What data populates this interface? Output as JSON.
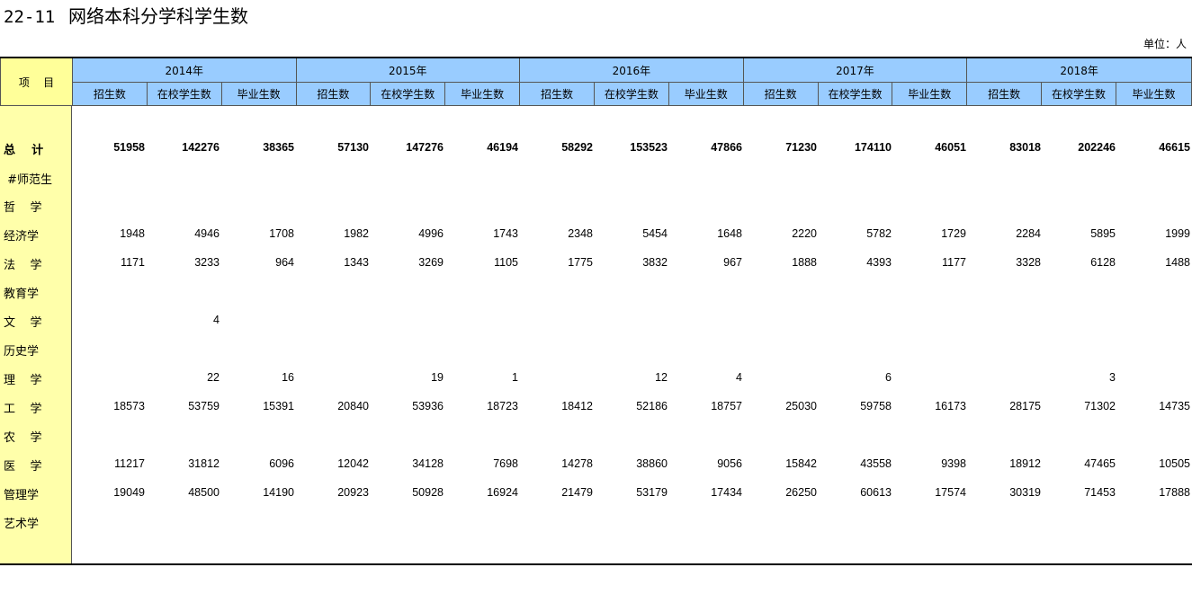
{
  "title": {
    "number": "22-11",
    "text": "网络本科分学科学生数"
  },
  "unit": "单位：人",
  "header": {
    "item": "项    目",
    "years": [
      "2014年",
      "2015年",
      "2016年",
      "2017年",
      "2018年"
    ],
    "subs": [
      "招生数",
      "在校学生数",
      "毕业生数"
    ]
  },
  "rows": [
    {
      "label": "总    计",
      "bold": true,
      "values": [
        "51958",
        "142276",
        "38365",
        "57130",
        "147276",
        "46194",
        "58292",
        "153523",
        "47866",
        "71230",
        "174110",
        "46051",
        "83018",
        "202246",
        "46615"
      ]
    },
    {
      "label": " #师范生",
      "bold": false,
      "values": [
        "",
        "",
        "",
        "",
        "",
        "",
        "",
        "",
        "",
        "",
        "",
        "",
        "",
        "",
        ""
      ]
    },
    {
      "label": "哲    学",
      "bold": false,
      "values": [
        "",
        "",
        "",
        "",
        "",
        "",
        "",
        "",
        "",
        "",
        "",
        "",
        "",
        "",
        ""
      ]
    },
    {
      "label": "经济学",
      "bold": false,
      "values": [
        "1948",
        "4946",
        "1708",
        "1982",
        "4996",
        "1743",
        "2348",
        "5454",
        "1648",
        "2220",
        "5782",
        "1729",
        "2284",
        "5895",
        "1999"
      ]
    },
    {
      "label": "法    学",
      "bold": false,
      "values": [
        "1171",
        "3233",
        "964",
        "1343",
        "3269",
        "1105",
        "1775",
        "3832",
        "967",
        "1888",
        "4393",
        "1177",
        "3328",
        "6128",
        "1488"
      ]
    },
    {
      "label": "教育学",
      "bold": false,
      "values": [
        "",
        "",
        "",
        "",
        "",
        "",
        "",
        "",
        "",
        "",
        "",
        "",
        "",
        "",
        ""
      ]
    },
    {
      "label": "文    学",
      "bold": false,
      "values": [
        "",
        "4",
        "",
        "",
        "",
        "",
        "",
        "",
        "",
        "",
        "",
        "",
        "",
        "",
        ""
      ]
    },
    {
      "label": "历史学",
      "bold": false,
      "values": [
        "",
        "",
        "",
        "",
        "",
        "",
        "",
        "",
        "",
        "",
        "",
        "",
        "",
        "",
        ""
      ]
    },
    {
      "label": "理    学",
      "bold": false,
      "values": [
        "",
        "22",
        "16",
        "",
        "19",
        "1",
        "",
        "12",
        "4",
        "",
        "6",
        "",
        "",
        "3",
        ""
      ]
    },
    {
      "label": "工    学",
      "bold": false,
      "values": [
        "18573",
        "53759",
        "15391",
        "20840",
        "53936",
        "18723",
        "18412",
        "52186",
        "18757",
        "25030",
        "59758",
        "16173",
        "28175",
        "71302",
        "14735"
      ]
    },
    {
      "label": "农    学",
      "bold": false,
      "values": [
        "",
        "",
        "",
        "",
        "",
        "",
        "",
        "",
        "",
        "",
        "",
        "",
        "",
        "",
        ""
      ]
    },
    {
      "label": "医    学",
      "bold": false,
      "values": [
        "11217",
        "31812",
        "6096",
        "12042",
        "34128",
        "7698",
        "14278",
        "38860",
        "9056",
        "15842",
        "43558",
        "9398",
        "18912",
        "47465",
        "10505"
      ]
    },
    {
      "label": "管理学",
      "bold": false,
      "values": [
        "19049",
        "48500",
        "14190",
        "20923",
        "50928",
        "16924",
        "21479",
        "53179",
        "17434",
        "26250",
        "60613",
        "17574",
        "30319",
        "71453",
        "17888"
      ]
    },
    {
      "label": "艺术学",
      "bold": false,
      "values": [
        "",
        "",
        "",
        "",
        "",
        "",
        "",
        "",
        "",
        "",
        "",
        "",
        "",
        "",
        ""
      ]
    }
  ]
}
